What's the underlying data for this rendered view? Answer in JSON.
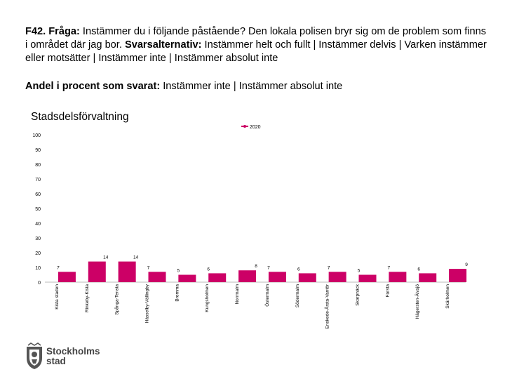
{
  "header": {
    "question_label": "F42. Fråga:",
    "question_text": " Instämmer du i följande påstående? Den lokala polisen bryr sig om de problem som finns i området där jag bor. ",
    "answers_label": "Svarsalternativ:",
    "answers_text": " Instämmer helt och fullt | Instämmer delvis | Varken instämmer eller motsätter | Instämmer inte | Instämmer absolut inte",
    "share_label": "Andel i procent som svarat:",
    "share_text": " Instämmer inte | Instämmer absolut inte"
  },
  "chart_data": {
    "type": "bar",
    "title": "Stadsdelsförvaltning",
    "legend": [
      "2020"
    ],
    "legend_position": "top-center",
    "ylim": [
      0,
      100
    ],
    "yticks": [
      0,
      10,
      20,
      30,
      40,
      50,
      60,
      70,
      80,
      90,
      100
    ],
    "xlabel": "",
    "ylabel": "",
    "categories": [
      "Kista staden",
      "Rinkeby-Kista",
      "Spånga-Tensta",
      "Hässelby-Vällingby",
      "Bromma",
      "Kungsholmen",
      "Norrmalm",
      "Östermalm",
      "Södermalm",
      "Enskede-Årsta-Vantör",
      "Skarpnäck",
      "Farsta",
      "Hägersten-Älvsjö",
      "Skärholmen"
    ],
    "series": [
      {
        "name": "2020",
        "values": [
          7,
          14,
          14,
          7,
          5,
          6,
          8,
          7,
          6,
          7,
          5,
          7,
          6,
          9
        ]
      }
    ],
    "bar_color": "#cc0066"
  },
  "footer": {
    "logo_line1": "Stockholms",
    "logo_line2": "stad"
  }
}
